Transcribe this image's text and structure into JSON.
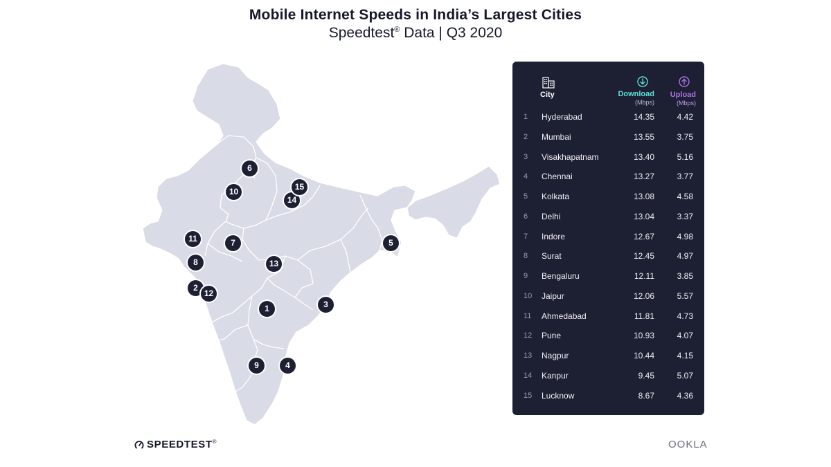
{
  "title": "Mobile Internet Speeds in India’s Largest Cities",
  "subtitle": {
    "prefix": "Speedtest",
    "reg": "®",
    "suffix": " Data | Q3 2020"
  },
  "table": {
    "headers": {
      "city": "City",
      "download": "Download",
      "download_unit": "(Mbps)",
      "upload": "Upload",
      "upload_unit": "(Mbps)"
    },
    "rows": [
      {
        "rank": "1",
        "city": "Hyderabad",
        "download": "14.35",
        "upload": "4.42"
      },
      {
        "rank": "2",
        "city": "Mumbai",
        "download": "13.55",
        "upload": "3.75"
      },
      {
        "rank": "3",
        "city": "Visakhapatnam",
        "download": "13.40",
        "upload": "5.16"
      },
      {
        "rank": "4",
        "city": "Chennai",
        "download": "13.27",
        "upload": "3.77"
      },
      {
        "rank": "5",
        "city": "Kolkata",
        "download": "13.08",
        "upload": "4.58"
      },
      {
        "rank": "6",
        "city": "Delhi",
        "download": "13.04",
        "upload": "3.37"
      },
      {
        "rank": "7",
        "city": "Indore",
        "download": "12.67",
        "upload": "4.98"
      },
      {
        "rank": "8",
        "city": "Surat",
        "download": "12.45",
        "upload": "4.97"
      },
      {
        "rank": "9",
        "city": "Bengaluru",
        "download": "12.11",
        "upload": "3.85"
      },
      {
        "rank": "10",
        "city": "Jaipur",
        "download": "12.06",
        "upload": "5.57"
      },
      {
        "rank": "11",
        "city": "Ahmedabad",
        "download": "11.81",
        "upload": "4.73"
      },
      {
        "rank": "12",
        "city": "Pune",
        "download": "10.93",
        "upload": "4.07"
      },
      {
        "rank": "13",
        "city": "Nagpur",
        "download": "10.44",
        "upload": "4.15"
      },
      {
        "rank": "14",
        "city": "Kanpur",
        "download": "9.45",
        "upload": "5.07"
      },
      {
        "rank": "15",
        "city": "Lucknow",
        "download": "8.67",
        "upload": "4.36"
      }
    ]
  },
  "map_pins": [
    "1",
    "2",
    "3",
    "4",
    "5",
    "6",
    "7",
    "8",
    "9",
    "10",
    "11",
    "12",
    "13",
    "14",
    "15"
  ],
  "colors": {
    "panel": "#1d1f33",
    "download_accent": "#5de0d6",
    "upload_accent": "#b06ee6",
    "map_fill": "#d9dbe6",
    "map_border": "#ffffff",
    "pin": "#1d1f33"
  },
  "icons": {
    "city": "building-icon",
    "download": "download-arrow-icon",
    "upload": "upload-arrow-icon",
    "speedtest": "gauge-icon"
  },
  "footer": {
    "left_brand": "SPEEDTEST",
    "left_trademark": "®",
    "right_brand": "OOKLA"
  }
}
